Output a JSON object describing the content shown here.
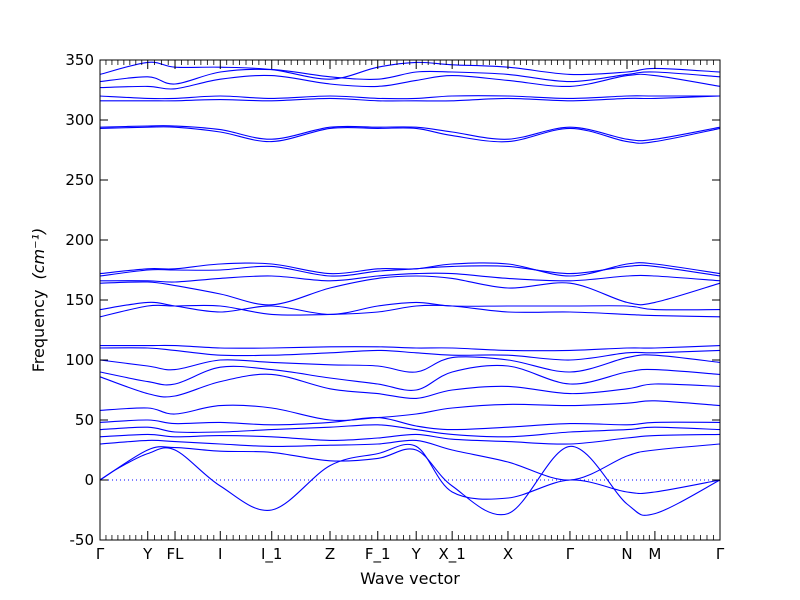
{
  "chart_data": {
    "type": "line",
    "title": "",
    "xlabel": "Wave vector",
    "ylabel": "Frequency",
    "ylabel_unit": "(cm⁻¹)",
    "ylim": [
      -50,
      350
    ],
    "yticks": [
      -50,
      0,
      50,
      100,
      150,
      200,
      250,
      300,
      350
    ],
    "grid": false,
    "legend": "none",
    "series_color": "#0000ff",
    "zero_line": {
      "y": 0,
      "style": "dotted",
      "color": "#0000ff"
    },
    "high_symmetry_points": [
      {
        "label": "Γ",
        "x": 0.0
      },
      {
        "label": "Y",
        "x": 0.077
      },
      {
        "label": "FL",
        "x": 0.121
      },
      {
        "label": "I",
        "x": 0.194
      },
      {
        "label": "I_1",
        "x": 0.277
      },
      {
        "label": "Z",
        "x": 0.371
      },
      {
        "label": "F_1",
        "x": 0.448
      },
      {
        "label": "Y",
        "x": 0.51
      },
      {
        "label": "X_1",
        "x": 0.568
      },
      {
        "label": "X",
        "x": 0.658
      },
      {
        "label": "Γ",
        "x": 0.758
      },
      {
        "label": "N",
        "x": 0.85
      },
      {
        "label": "M",
        "x": 0.895
      },
      {
        "label": "Γ",
        "x": 1.0
      }
    ],
    "bands": [
      {
        "x": [
          0,
          0.03,
          0.077,
          0.121,
          0.194,
          0.277,
          0.371,
          0.448,
          0.51,
          0.568,
          0.658,
          0.758,
          0.85,
          0.895,
          1.0
        ],
        "y": [
          0,
          10,
          22,
          25,
          -5,
          -25,
          12,
          22,
          28,
          -10,
          -15,
          0,
          -10,
          -10,
          0
        ]
      },
      {
        "x": [
          0,
          0.077,
          0.121,
          0.194,
          0.277,
          0.371,
          0.448,
          0.51,
          0.568,
          0.658,
          0.758,
          0.85,
          0.895,
          1.0
        ],
        "y": [
          0,
          25,
          27,
          24,
          23,
          16,
          18,
          25,
          -5,
          -28,
          28,
          -20,
          -28,
          0
        ]
      },
      {
        "x": [
          0,
          0.077,
          0.121,
          0.194,
          0.277,
          0.371,
          0.448,
          0.51,
          0.568,
          0.658,
          0.758,
          0.85,
          0.895,
          1.0
        ],
        "y": [
          30,
          33,
          32,
          30,
          28,
          29,
          30,
          33,
          25,
          15,
          0,
          20,
          25,
          30
        ]
      },
      {
        "x": [
          0,
          0.077,
          0.121,
          0.194,
          0.277,
          0.371,
          0.448,
          0.51,
          0.568,
          0.658,
          0.758,
          0.85,
          0.895,
          1.0
        ],
        "y": [
          36,
          38,
          36,
          37,
          36,
          33,
          35,
          38,
          34,
          32,
          30,
          35,
          37,
          38
        ]
      },
      {
        "x": [
          0,
          0.077,
          0.121,
          0.194,
          0.277,
          0.371,
          0.448,
          0.51,
          0.568,
          0.658,
          0.758,
          0.85,
          0.895,
          1.0
        ],
        "y": [
          42,
          44,
          40,
          40,
          42,
          44,
          46,
          42,
          38,
          36,
          40,
          42,
          44,
          42
        ]
      },
      {
        "x": [
          0,
          0.077,
          0.121,
          0.194,
          0.277,
          0.371,
          0.448,
          0.51,
          0.568,
          0.658,
          0.758,
          0.85,
          0.895,
          1.0
        ],
        "y": [
          48,
          50,
          47,
          48,
          46,
          48,
          52,
          45,
          42,
          44,
          47,
          46,
          48,
          48
        ]
      },
      {
        "x": [
          0,
          0.077,
          0.121,
          0.194,
          0.277,
          0.371,
          0.448,
          0.51,
          0.568,
          0.658,
          0.758,
          0.85,
          0.895,
          1.0
        ],
        "y": [
          58,
          60,
          55,
          62,
          60,
          50,
          52,
          55,
          60,
          63,
          62,
          64,
          66,
          62
        ]
      },
      {
        "x": [
          0,
          0.077,
          0.121,
          0.194,
          0.277,
          0.371,
          0.448,
          0.51,
          0.568,
          0.658,
          0.758,
          0.85,
          0.895,
          1.0
        ],
        "y": [
          86,
          72,
          70,
          82,
          88,
          76,
          72,
          68,
          75,
          78,
          72,
          76,
          80,
          78
        ]
      },
      {
        "x": [
          0,
          0.077,
          0.121,
          0.194,
          0.277,
          0.371,
          0.448,
          0.51,
          0.568,
          0.658,
          0.758,
          0.85,
          0.895,
          1.0
        ],
        "y": [
          90,
          82,
          80,
          94,
          92,
          85,
          80,
          75,
          90,
          95,
          80,
          90,
          92,
          88
        ]
      },
      {
        "x": [
          0,
          0.077,
          0.121,
          0.194,
          0.277,
          0.371,
          0.448,
          0.51,
          0.568,
          0.658,
          0.758,
          0.85,
          0.895,
          1.0
        ],
        "y": [
          100,
          95,
          92,
          100,
          98,
          96,
          95,
          90,
          102,
          100,
          90,
          102,
          104,
          98
        ]
      },
      {
        "x": [
          0,
          0.077,
          0.121,
          0.194,
          0.277,
          0.371,
          0.448,
          0.51,
          0.568,
          0.658,
          0.758,
          0.85,
          0.895,
          1.0
        ],
        "y": [
          110,
          110,
          108,
          104,
          104,
          106,
          108,
          106,
          104,
          104,
          100,
          106,
          106,
          108
        ]
      },
      {
        "x": [
          0,
          0.077,
          0.121,
          0.194,
          0.277,
          0.371,
          0.448,
          0.51,
          0.568,
          0.658,
          0.758,
          0.85,
          0.895,
          1.0
        ],
        "y": [
          112,
          112,
          112,
          110,
          110,
          111,
          111,
          110,
          110,
          108,
          108,
          110,
          110,
          112
        ]
      },
      {
        "x": [
          0,
          0.077,
          0.121,
          0.194,
          0.277,
          0.371,
          0.448,
          0.51,
          0.568,
          0.658,
          0.758,
          0.85,
          0.895,
          1.0
        ],
        "y": [
          136,
          145,
          145,
          145,
          138,
          138,
          140,
          145,
          145,
          140,
          140,
          138,
          137,
          136
        ]
      },
      {
        "x": [
          0,
          0.077,
          0.121,
          0.194,
          0.277,
          0.371,
          0.448,
          0.51,
          0.568,
          0.658,
          0.758,
          0.85,
          0.895,
          1.0
        ],
        "y": [
          142,
          148,
          145,
          140,
          145,
          138,
          145,
          148,
          145,
          145,
          145,
          145,
          142,
          142
        ]
      },
      {
        "x": [
          0,
          0.077,
          0.121,
          0.194,
          0.277,
          0.371,
          0.448,
          0.51,
          0.568,
          0.658,
          0.758,
          0.85,
          0.895,
          1.0
        ],
        "y": [
          164,
          165,
          162,
          155,
          146,
          160,
          168,
          170,
          168,
          160,
          164,
          148,
          148,
          164
        ]
      },
      {
        "x": [
          0,
          0.077,
          0.121,
          0.194,
          0.277,
          0.371,
          0.448,
          0.51,
          0.568,
          0.658,
          0.758,
          0.85,
          0.895,
          1.0
        ],
        "y": [
          166,
          166,
          165,
          168,
          170,
          166,
          170,
          172,
          172,
          168,
          166,
          170,
          170,
          166
        ]
      },
      {
        "x": [
          0,
          0.077,
          0.121,
          0.194,
          0.277,
          0.371,
          0.448,
          0.51,
          0.568,
          0.658,
          0.758,
          0.85,
          0.895,
          1.0
        ],
        "y": [
          170,
          175,
          175,
          175,
          178,
          170,
          174,
          176,
          178,
          178,
          172,
          178,
          178,
          170
        ]
      },
      {
        "x": [
          0,
          0.077,
          0.121,
          0.194,
          0.277,
          0.371,
          0.448,
          0.51,
          0.568,
          0.658,
          0.758,
          0.85,
          0.895,
          1.0
        ],
        "y": [
          172,
          176,
          176,
          180,
          180,
          172,
          176,
          176,
          180,
          180,
          170,
          180,
          180,
          172
        ]
      },
      {
        "x": [
          0,
          0.077,
          0.121,
          0.194,
          0.277,
          0.371,
          0.448,
          0.51,
          0.568,
          0.658,
          0.758,
          0.85,
          0.895,
          1.0
        ],
        "y": [
          293,
          294,
          294,
          290,
          282,
          293,
          293,
          293,
          287,
          282,
          293,
          282,
          282,
          293
        ]
      },
      {
        "x": [
          0,
          0.077,
          0.121,
          0.194,
          0.277,
          0.371,
          0.448,
          0.51,
          0.568,
          0.658,
          0.758,
          0.85,
          0.895,
          1.0
        ],
        "y": [
          294,
          295,
          295,
          292,
          284,
          294,
          294,
          294,
          290,
          284,
          294,
          284,
          284,
          294
        ]
      },
      {
        "x": [
          0,
          0.077,
          0.121,
          0.194,
          0.277,
          0.371,
          0.448,
          0.51,
          0.568,
          0.658,
          0.758,
          0.85,
          0.895,
          1.0
        ],
        "y": [
          316,
          316,
          316,
          317,
          316,
          318,
          316,
          316,
          316,
          318,
          316,
          318,
          318,
          320
        ]
      },
      {
        "x": [
          0,
          0.077,
          0.121,
          0.194,
          0.277,
          0.371,
          0.448,
          0.51,
          0.568,
          0.658,
          0.758,
          0.85,
          0.895,
          1.0
        ],
        "y": [
          320,
          318,
          318,
          320,
          318,
          320,
          318,
          318,
          320,
          320,
          318,
          320,
          320,
          320
        ]
      },
      {
        "x": [
          0,
          0.077,
          0.121,
          0.194,
          0.277,
          0.371,
          0.448,
          0.51,
          0.568,
          0.658,
          0.758,
          0.85,
          0.895,
          1.0
        ],
        "y": [
          327,
          328,
          326,
          334,
          337,
          330,
          328,
          333,
          337,
          333,
          328,
          337,
          337,
          328
        ]
      },
      {
        "x": [
          0,
          0.077,
          0.121,
          0.194,
          0.277,
          0.371,
          0.448,
          0.51,
          0.568,
          0.658,
          0.758,
          0.85,
          0.895,
          1.0
        ],
        "y": [
          332,
          336,
          330,
          340,
          342,
          336,
          334,
          340,
          340,
          338,
          332,
          338,
          340,
          336
        ]
      },
      {
        "x": [
          0,
          0.077,
          0.121,
          0.194,
          0.277,
          0.371,
          0.448,
          0.51,
          0.568,
          0.658,
          0.758,
          0.85,
          0.895,
          1.0
        ],
        "y": [
          338,
          348,
          344,
          344,
          342,
          334,
          344,
          348,
          346,
          344,
          338,
          340,
          343,
          340
        ]
      }
    ]
  }
}
